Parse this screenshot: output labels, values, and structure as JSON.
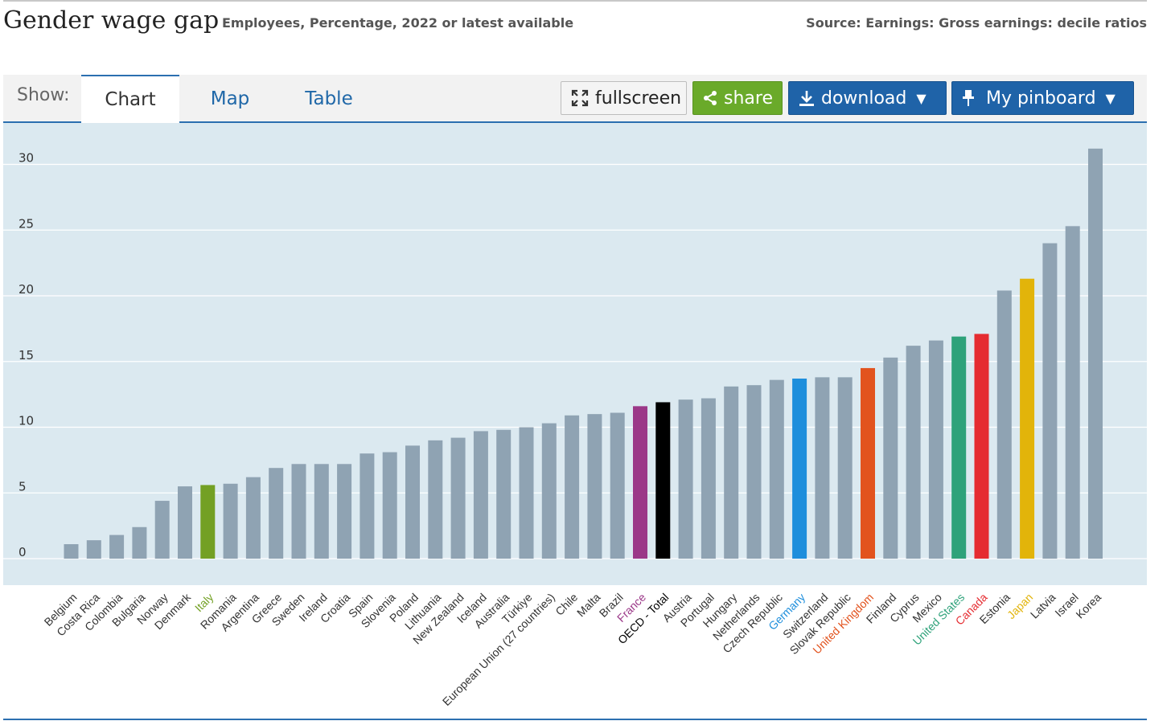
{
  "header": {
    "title": "Gender wage gap",
    "subtitle": "Employees, Percentage, 2022 or latest available",
    "source": "Source: Earnings: Gross earnings: decile ratios"
  },
  "toolbar": {
    "show_label": "Show:",
    "tabs": [
      {
        "label": "Chart",
        "active": true
      },
      {
        "label": "Map",
        "active": false
      },
      {
        "label": "Table",
        "active": false
      }
    ],
    "fullscreen_label": "fullscreen",
    "share_label": "share",
    "download_label": "download",
    "pinboard_label": "My pinboard",
    "icons": [
      "fullscreen-icon",
      "share-icon",
      "download-icon",
      "caret-down-icon",
      "pin-icon"
    ]
  },
  "colors": {
    "default_bar": "#8fa3b3",
    "plot_bg": "#dbe9f0",
    "accent_blue": "#1f63a8",
    "share_green": "#6aaa2a"
  },
  "chart_data": {
    "type": "bar",
    "title": "Gender wage gap",
    "ylim": [
      0,
      31
    ],
    "yticks": [
      0,
      5,
      10,
      15,
      20,
      25,
      30
    ],
    "grid": true,
    "categories": [
      "Belgium",
      "Costa Rica",
      "Colombia",
      "Bulgaria",
      "Norway",
      "Denmark",
      "Italy",
      "Romania",
      "Argentina",
      "Greece",
      "Sweden",
      "Ireland",
      "Croatia",
      "Spain",
      "Slovenia",
      "Poland",
      "Lithuania",
      "New Zealand",
      "Iceland",
      "Australia",
      "Türkiye",
      "European Union (27 countries)",
      "Chile",
      "Malta",
      "Brazil",
      "France",
      "OECD - Total",
      "Austria",
      "Portugal",
      "Hungary",
      "Netherlands",
      "Czech Republic",
      "Germany",
      "Switzerland",
      "Slovak Republic",
      "United Kingdom",
      "Finland",
      "Cyprus",
      "Mexico",
      "United States",
      "Canada",
      "Estonia",
      "Japan",
      "Latvia",
      "Israel",
      "Korea"
    ],
    "values": [
      1.1,
      1.4,
      1.8,
      2.4,
      4.4,
      5.5,
      5.6,
      5.7,
      6.2,
      6.9,
      7.2,
      7.2,
      7.2,
      8.0,
      8.1,
      8.6,
      9.0,
      9.2,
      9.7,
      9.8,
      10.0,
      10.3,
      10.9,
      11.0,
      11.1,
      11.6,
      11.9,
      12.1,
      12.2,
      13.1,
      13.2,
      13.6,
      13.7,
      13.8,
      13.8,
      14.5,
      15.3,
      16.2,
      16.6,
      16.9,
      17.1,
      20.4,
      21.3,
      24.0,
      25.3,
      31.2
    ],
    "colors": [
      "#8fa3b3",
      "#8fa3b3",
      "#8fa3b3",
      "#8fa3b3",
      "#8fa3b3",
      "#8fa3b3",
      "#73a024",
      "#8fa3b3",
      "#8fa3b3",
      "#8fa3b3",
      "#8fa3b3",
      "#8fa3b3",
      "#8fa3b3",
      "#8fa3b3",
      "#8fa3b3",
      "#8fa3b3",
      "#8fa3b3",
      "#8fa3b3",
      "#8fa3b3",
      "#8fa3b3",
      "#8fa3b3",
      "#8fa3b3",
      "#8fa3b3",
      "#8fa3b3",
      "#8fa3b3",
      "#9b3888",
      "#000000",
      "#8fa3b3",
      "#8fa3b3",
      "#8fa3b3",
      "#8fa3b3",
      "#8fa3b3",
      "#1d8edc",
      "#8fa3b3",
      "#8fa3b3",
      "#e2531e",
      "#8fa3b3",
      "#8fa3b3",
      "#8fa3b3",
      "#2ea27a",
      "#e52c31",
      "#8fa3b3",
      "#e2b40a",
      "#8fa3b3",
      "#8fa3b3",
      "#8fa3b3"
    ],
    "label_colors": [
      "#333333",
      "#333333",
      "#333333",
      "#333333",
      "#333333",
      "#333333",
      "#73a024",
      "#333333",
      "#333333",
      "#333333",
      "#333333",
      "#333333",
      "#333333",
      "#333333",
      "#333333",
      "#333333",
      "#333333",
      "#333333",
      "#333333",
      "#333333",
      "#333333",
      "#333333",
      "#333333",
      "#333333",
      "#333333",
      "#9b3888",
      "#000000",
      "#333333",
      "#333333",
      "#333333",
      "#333333",
      "#333333",
      "#1d8edc",
      "#333333",
      "#333333",
      "#e2531e",
      "#333333",
      "#333333",
      "#333333",
      "#2ea27a",
      "#e52c31",
      "#333333",
      "#e2b40a",
      "#333333",
      "#333333",
      "#333333"
    ]
  }
}
